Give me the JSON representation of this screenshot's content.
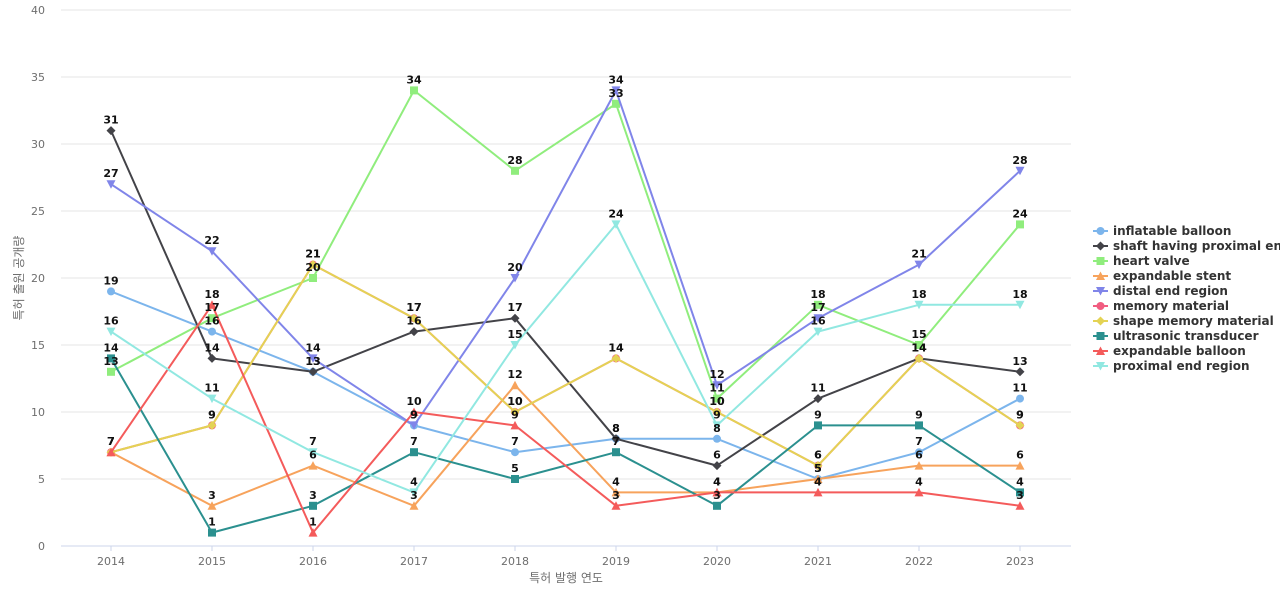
{
  "chart_data": {
    "type": "line",
    "title": "",
    "xlabel": "특허 발행 연도",
    "ylabel": "특허 출원 공개량",
    "x": [
      2014,
      2015,
      2016,
      2017,
      2018,
      2019,
      2020,
      2021,
      2022,
      2023
    ],
    "ylim": [
      0,
      40
    ],
    "yticks": [
      0,
      5,
      10,
      15,
      20,
      25,
      30,
      35,
      40
    ],
    "grid": true,
    "legend_position": "right",
    "series": [
      {
        "name": "inflatable balloon",
        "color": "#7cb5ec",
        "marker": "circle",
        "values": [
          19,
          16,
          13,
          9,
          7,
          8,
          8,
          5,
          7,
          11
        ]
      },
      {
        "name": "shaft having proximal end",
        "color": "#434348",
        "marker": "diamond",
        "values": [
          31,
          14,
          13,
          16,
          17,
          8,
          6,
          11,
          14,
          13
        ]
      },
      {
        "name": "heart valve",
        "color": "#90ed7d",
        "marker": "square",
        "values": [
          13,
          17,
          20,
          34,
          28,
          33,
          11,
          18,
          15,
          24
        ]
      },
      {
        "name": "expandable stent",
        "color": "#f7a35c",
        "marker": "triangle",
        "values": [
          7,
          3,
          6,
          3,
          12,
          4,
          4,
          5,
          6,
          6
        ]
      },
      {
        "name": "distal end region",
        "color": "#8085e9",
        "marker": "triangle-down",
        "values": [
          27,
          22,
          14,
          9,
          20,
          34,
          12,
          17,
          21,
          28
        ]
      },
      {
        "name": "memory material",
        "color": "#f15c80",
        "marker": "circle",
        "values": [
          7,
          9,
          21,
          17,
          10,
          14,
          10,
          6,
          14,
          9
        ]
      },
      {
        "name": "shape memory material",
        "color": "#e4d354",
        "marker": "diamond",
        "values": [
          7,
          9,
          21,
          17,
          10,
          14,
          10,
          6,
          14,
          9
        ]
      },
      {
        "name": "ultrasonic transducer",
        "color": "#2b908f",
        "marker": "square",
        "values": [
          14,
          1,
          3,
          7,
          5,
          7,
          3,
          9,
          9,
          4
        ]
      },
      {
        "name": "expandable balloon",
        "color": "#f45b5b",
        "marker": "triangle",
        "values": [
          7,
          18,
          1,
          10,
          9,
          3,
          4,
          4,
          4,
          3
        ]
      },
      {
        "name": "proximal end region",
        "color": "#91e8e1",
        "marker": "triangle-down",
        "values": [
          16,
          11,
          7,
          4,
          15,
          24,
          9,
          16,
          18,
          18
        ]
      }
    ]
  }
}
